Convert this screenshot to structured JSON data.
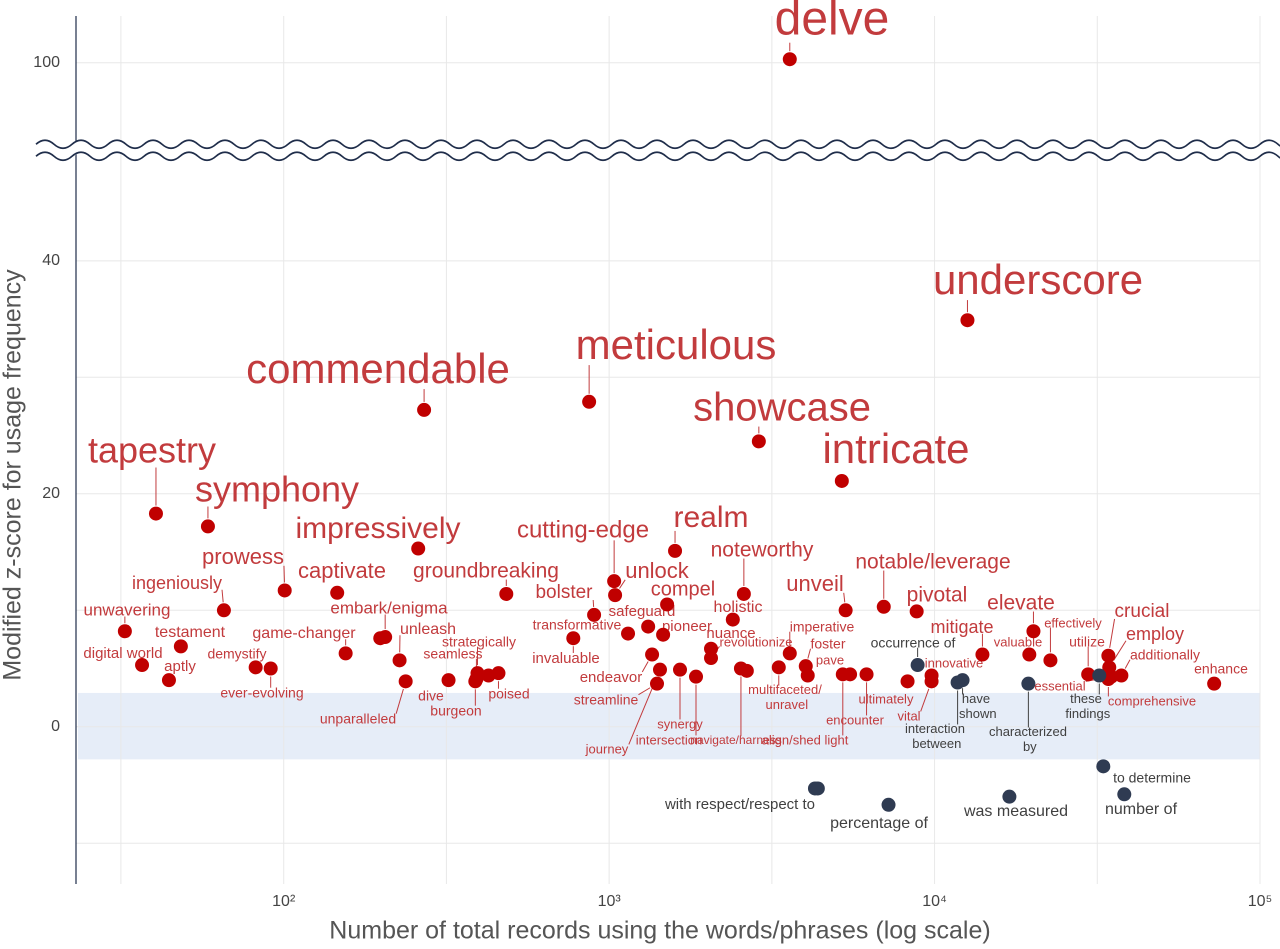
{
  "chart_data": {
    "type": "scatter",
    "x_label": "Number of total records using the words/phrases (log scale)",
    "y_label": "Modified z-score for usage frequency",
    "x_log": true,
    "xlim": [
      23,
      100000
    ],
    "xticks": [
      {
        "value": 100,
        "label": "10²"
      },
      {
        "value": 1000,
        "label": "10³"
      },
      {
        "value": 10000,
        "label": "10⁴"
      },
      {
        "value": 100000,
        "label": "10⁵"
      }
    ],
    "x_minor_grid": [
      31.6,
      316.2,
      3162.3,
      31622.8
    ],
    "ylim": [
      -13.5,
      104
    ],
    "y_break": [
      49,
      93
    ],
    "yticks": [
      0,
      20,
      40,
      100
    ],
    "y_minor_grid": [
      -10,
      10,
      30
    ],
    "shaded_band": [
      -2.8,
      2.9
    ],
    "grid": true,
    "series": [
      {
        "color": "#c00000",
        "label_color": "#c23b3d",
        "labels": [
          "delve",
          "underscore",
          "commendable",
          "meticulous",
          "showcase",
          "intricate",
          "tapestry",
          "symphony",
          "impressively",
          "realm",
          "cutting-edge",
          "unlock",
          "compel",
          "noteworthy",
          "prowess",
          "captivate",
          "groundbreaking",
          "bolster",
          "ingeniously",
          "unveil",
          "notable/leverage",
          "pivotal",
          "elevate",
          "mitigate",
          "crucial",
          "employ",
          "additionally",
          "enhance",
          "unwavering",
          "testament",
          "digital world",
          "aptly",
          "demystify",
          "ever-evolving",
          "game-changer",
          "embark/enigma",
          "unleash",
          "unparalleled",
          "strategically",
          "seamless",
          "dive",
          "burgeon",
          "poised",
          "transformative",
          "invaluable",
          "safeguard",
          "pioneer",
          "endeavor",
          "streamline",
          "journey",
          "synergy",
          "intersection",
          "holistic",
          "nuance",
          "revolutionize",
          "navigate/harness",
          "imperative",
          "foster",
          "pave",
          "multifaceted/\nunravel",
          "align/shed light",
          "encounter",
          "ultimately",
          "vital",
          "innovative",
          "valuable",
          "effectively",
          "utilize",
          "comprehensive",
          "essential",
          null,
          null,
          null,
          null
        ],
        "x": [
          3590,
          12620,
          270,
          868,
          2884,
          5188,
          40.5,
          58.5,
          259,
          1594,
          1036,
          1043,
          1507,
          2594,
          100.7,
          146,
          483,
          899,
          65.5,
          5330,
          6980,
          8810,
          20130,
          14030,
          34200,
          34420,
          37500,
          72300,
          32.5,
          48.3,
          36.7,
          44.4,
          82,
          91.2,
          155,
          205,
          227,
          237,
          394,
          391,
          321,
          388,
          457,
          1143,
          776,
          1318,
          1465,
          1355,
          1403,
          1433,
          1651,
          1849,
          2399,
          2056,
          2056,
          2541,
          3590,
          4020,
          4076,
          3321,
          5224,
          6180,
          8260,
          9790,
          9790,
          19550,
          22700,
          29650,
          34200,
          34930,
          198,
          426,
          2649,
          5500
        ],
        "values": [
          100.3,
          34.9,
          27.2,
          27.9,
          24.5,
          21.1,
          18.3,
          17.2,
          15.3,
          15.1,
          12.5,
          11.3,
          10.5,
          11.4,
          11.7,
          11.5,
          11.4,
          9.6,
          10.0,
          10.0,
          10.3,
          9.9,
          8.2,
          6.2,
          6.1,
          5.1,
          4.4,
          3.7,
          8.2,
          6.9,
          5.3,
          4.0,
          5.1,
          5.0,
          6.3,
          7.7,
          5.7,
          3.9,
          4.6,
          4.1,
          4.0,
          3.9,
          4.6,
          8.0,
          7.6,
          8.6,
          7.9,
          6.2,
          3.7,
          4.9,
          4.9,
          4.3,
          9.2,
          6.7,
          5.9,
          5.0,
          6.3,
          5.2,
          4.4,
          5.1,
          4.5,
          4.5,
          3.9,
          3.9,
          4.4,
          6.2,
          5.7,
          4.5,
          4.1,
          4.3,
          7.6,
          4.4,
          4.8,
          4.5
        ]
      },
      {
        "color": "#2f3b52",
        "label_color": "#404040",
        "labels": [
          "occurrence of",
          "have\nshown",
          "interaction\nbetween",
          "characterized\nby",
          "these\nfindings",
          "to determine",
          "number of",
          "was measured",
          "percentage of",
          "with respect/respect to",
          null
        ],
        "x": [
          8870,
          12190,
          11770,
          19420,
          32070,
          33000,
          38280,
          16980,
          7220,
          4290,
          4378
        ],
        "values": [
          5.3,
          4.0,
          3.8,
          3.7,
          4.4,
          -3.4,
          -5.8,
          -6.0,
          -6.7,
          -5.3,
          -5.3
        ]
      }
    ]
  }
}
